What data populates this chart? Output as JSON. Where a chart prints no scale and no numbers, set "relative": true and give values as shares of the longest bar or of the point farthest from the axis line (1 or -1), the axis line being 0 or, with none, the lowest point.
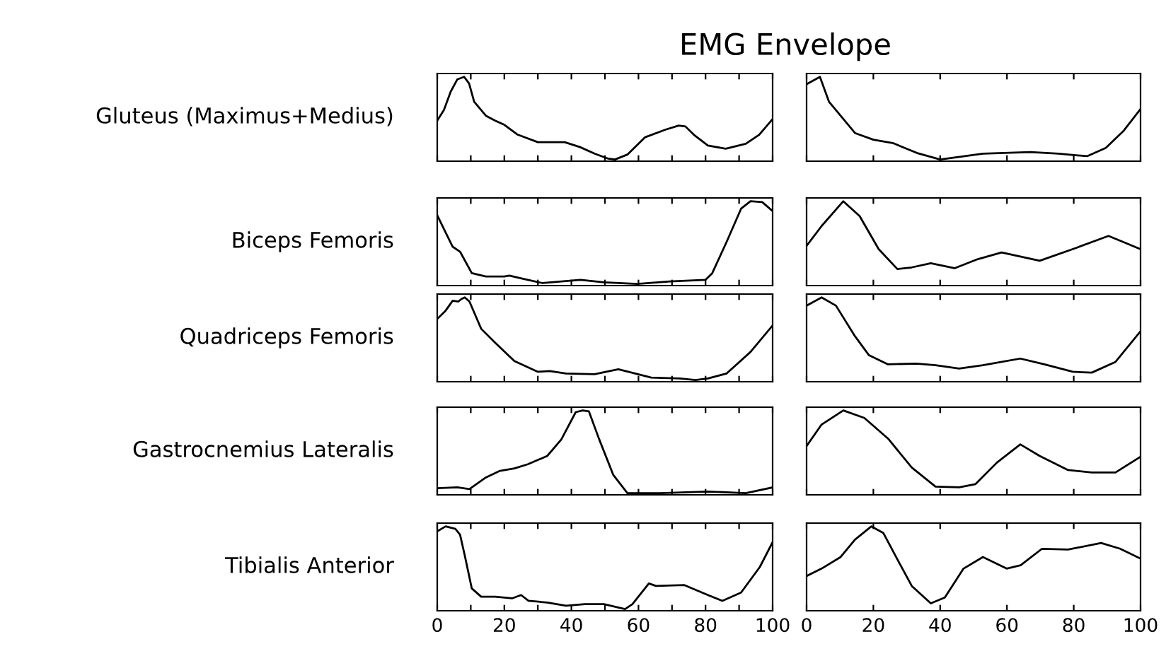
{
  "chart_data": [
    {
      "type": "line",
      "relative": true,
      "title": "EMG Envelope",
      "ylabel": "Gluteus (Maximus+Medius)",
      "color": "#000000",
      "xlim": [
        0,
        100
      ],
      "tick_labels": false,
      "xticks": [
        0,
        {
          "value": 10,
          "label": null
        },
        20,
        {
          "value": 30,
          "label": null
        },
        40,
        {
          "value": 50,
          "label": null
        },
        60,
        {
          "value": 70,
          "label": null
        },
        80,
        {
          "value": 90,
          "label": null
        },
        100
      ],
      "x": [
        0,
        2,
        4,
        6,
        8,
        9.5,
        11,
        14.5,
        17.3,
        20,
        24,
        30,
        38,
        42.6,
        47,
        51,
        53,
        56.7,
        62,
        68,
        72,
        74,
        76.5,
        80.7,
        86,
        92,
        96,
        100
      ],
      "values": [
        0.47,
        0.6,
        0.82,
        0.97,
        1.0,
        0.92,
        0.7,
        0.53,
        0.47,
        0.42,
        0.3,
        0.21,
        0.21,
        0.15,
        0.07,
        0.01,
        0,
        0.06,
        0.27,
        0.36,
        0.41,
        0.4,
        0.3,
        0.17,
        0.13,
        0.19,
        0.3,
        0.49
      ]
    },
    {
      "type": "line",
      "relative": true,
      "color": "#000000",
      "xlim": [
        0,
        100
      ],
      "tick_labels": false,
      "xticks": [
        0,
        20,
        40,
        60,
        80,
        100
      ],
      "x": [
        0,
        4,
        6.7,
        14.5,
        20,
        25.8,
        33,
        40,
        52.8,
        67,
        75.5,
        84,
        89.6,
        95,
        100
      ],
      "values": [
        0.91,
        1.0,
        0.7,
        0.32,
        0.24,
        0.2,
        0.08,
        0,
        0.07,
        0.09,
        0.07,
        0.04,
        0.14,
        0.35,
        0.61
      ]
    },
    {
      "type": "line",
      "relative": true,
      "ylabel": "Biceps Femoris",
      "color": "#000000",
      "xlim": [
        0,
        100
      ],
      "tick_labels": false,
      "xticks": [
        0,
        {
          "value": 10,
          "label": null
        },
        20,
        {
          "value": 30,
          "label": null
        },
        40,
        {
          "value": 50,
          "label": null
        },
        60,
        {
          "value": 70,
          "label": null
        },
        80,
        {
          "value": 90,
          "label": null
        },
        100
      ],
      "x": [
        0,
        1.8,
        4.6,
        6.8,
        10.3,
        14.5,
        20,
        21.5,
        25.8,
        31.4,
        42.7,
        49.7,
        59.6,
        69.4,
        80,
        82,
        86.3,
        90.6,
        93.4,
        96.9,
        100
      ],
      "values": [
        0.83,
        0.68,
        0.45,
        0.39,
        0.13,
        0.09,
        0.09,
        0.1,
        0.06,
        0.01,
        0.05,
        0.02,
        0,
        0.03,
        0.05,
        0.13,
        0.51,
        0.91,
        1.0,
        0.99,
        0.88
      ]
    },
    {
      "type": "line",
      "relative": true,
      "color": "#000000",
      "xlim": [
        0,
        100
      ],
      "tick_labels": false,
      "xticks": [
        0,
        20,
        40,
        60,
        80,
        100
      ],
      "x": [
        0,
        4.5,
        11,
        15.9,
        21.6,
        27.2,
        31.5,
        37.2,
        44.3,
        51.3,
        58.4,
        69.8,
        81,
        90.4,
        95.3,
        100
      ],
      "values": [
        0.46,
        0.7,
        1.0,
        0.82,
        0.42,
        0.18,
        0.2,
        0.25,
        0.19,
        0.3,
        0.38,
        0.28,
        0.44,
        0.58,
        0.5,
        0.42
      ]
    },
    {
      "type": "line",
      "relative": true,
      "ylabel": "Quadriceps Femoris",
      "color": "#000000",
      "xlim": [
        0,
        100
      ],
      "tick_labels": false,
      "xticks": [
        0,
        {
          "value": 10,
          "label": null
        },
        20,
        {
          "value": 30,
          "label": null
        },
        40,
        {
          "value": 50,
          "label": null
        },
        60,
        {
          "value": 70,
          "label": null
        },
        80,
        {
          "value": 90,
          "label": null
        },
        100
      ],
      "x": [
        0,
        2.5,
        4.6,
        6.3,
        7.2,
        8.2,
        9.6,
        13.1,
        17.3,
        23,
        30,
        33.5,
        38.4,
        46.9,
        50.4,
        54,
        58,
        63.8,
        72.3,
        77,
        80.7,
        86.3,
        93.4,
        100
      ],
      "values": [
        0.74,
        0.84,
        0.96,
        0.95,
        0.98,
        1.0,
        0.95,
        0.62,
        0.45,
        0.23,
        0.1,
        0.11,
        0.08,
        0.07,
        0.1,
        0.13,
        0.09,
        0.03,
        0.02,
        0,
        0.02,
        0.08,
        0.34,
        0.66
      ]
    },
    {
      "type": "line",
      "relative": true,
      "color": "#000000",
      "xlim": [
        0,
        100
      ],
      "tick_labels": false,
      "xticks": [
        0,
        20,
        40,
        60,
        80,
        100
      ],
      "x": [
        0,
        4.5,
        8.8,
        14.5,
        18.7,
        24.4,
        32.9,
        38.6,
        45.7,
        52.8,
        64,
        71.2,
        79.7,
        85.4,
        92.5,
        100
      ],
      "values": [
        0.9,
        1.0,
        0.9,
        0.53,
        0.3,
        0.19,
        0.2,
        0.18,
        0.14,
        0.18,
        0.26,
        0.19,
        0.1,
        0.09,
        0.22,
        0.59
      ]
    },
    {
      "type": "line",
      "relative": true,
      "ylabel": "Gastrocnemius Lateralis",
      "color": "#000000",
      "xlim": [
        0,
        100
      ],
      "tick_labels": false,
      "xticks": [
        0,
        {
          "value": 10,
          "label": null
        },
        20,
        {
          "value": 30,
          "label": null
        },
        40,
        {
          "value": 50,
          "label": null
        },
        60,
        {
          "value": 70,
          "label": null
        },
        80,
        {
          "value": 90,
          "label": null
        },
        100
      ],
      "x": [
        0,
        6,
        9.6,
        14.5,
        18.7,
        23,
        27,
        32.8,
        37,
        41.3,
        43.4,
        45.2,
        48.3,
        52.5,
        56.7,
        66.5,
        80.7,
        92,
        100
      ],
      "values": [
        0.06,
        0.07,
        0.05,
        0.19,
        0.27,
        0.3,
        0.35,
        0.45,
        0.65,
        0.98,
        1.0,
        0.99,
        0.65,
        0.22,
        0,
        0,
        0.02,
        0,
        0.07
      ]
    },
    {
      "type": "line",
      "relative": true,
      "color": "#000000",
      "xlim": [
        0,
        100
      ],
      "tick_labels": false,
      "xticks": [
        0,
        20,
        40,
        60,
        80,
        100
      ],
      "x": [
        0,
        4.5,
        11,
        17.3,
        24.4,
        31.5,
        38.6,
        45.7,
        50.6,
        57,
        64,
        69.8,
        78.3,
        85.4,
        92.5,
        100
      ],
      "values": [
        0.57,
        0.83,
        1.0,
        0.91,
        0.66,
        0.31,
        0.08,
        0.07,
        0.11,
        0.37,
        0.59,
        0.45,
        0.28,
        0.25,
        0.25,
        0.44
      ]
    },
    {
      "type": "line",
      "relative": true,
      "ylabel": "Tibialis Anterior",
      "color": "#000000",
      "xlim": [
        0,
        100
      ],
      "tick_labels": "x",
      "xticks": [
        0,
        {
          "value": 10,
          "label": null
        },
        20,
        {
          "value": 30,
          "label": null
        },
        40,
        {
          "value": 50,
          "label": null
        },
        60,
        {
          "value": 70,
          "label": null
        },
        80,
        {
          "value": 90,
          "label": null
        },
        100
      ],
      "x": [
        0,
        2.5,
        5.4,
        6.8,
        8.2,
        10.3,
        13.1,
        17.3,
        22.3,
        25,
        27.2,
        32.8,
        38.4,
        44,
        49.7,
        56,
        58.2,
        63.1,
        65.2,
        73.7,
        80.7,
        85,
        90.6,
        96.2,
        100
      ],
      "values": [
        0.94,
        1.0,
        0.97,
        0.9,
        0.65,
        0.25,
        0.15,
        0.15,
        0.13,
        0.17,
        0.1,
        0.08,
        0.04,
        0.06,
        0.06,
        0,
        0.06,
        0.31,
        0.28,
        0.29,
        0.17,
        0.1,
        0.2,
        0.51,
        0.81
      ]
    },
    {
      "type": "line",
      "relative": true,
      "color": "#000000",
      "xlim": [
        0,
        100
      ],
      "tick_labels": "x",
      "xticks": [
        0,
        20,
        40,
        60,
        80,
        100
      ],
      "x": [
        0,
        4.5,
        10.2,
        14.5,
        19.4,
        23,
        27.2,
        31.5,
        37.2,
        41.4,
        47,
        52.8,
        59.9,
        64.1,
        70.5,
        78.3,
        88.2,
        93.9,
        100
      ],
      "values": [
        0.4,
        0.49,
        0.63,
        0.84,
        1.0,
        0.92,
        0.6,
        0.28,
        0.07,
        0.14,
        0.49,
        0.63,
        0.49,
        0.53,
        0.73,
        0.72,
        0.8,
        0.73,
        0.61
      ]
    }
  ]
}
